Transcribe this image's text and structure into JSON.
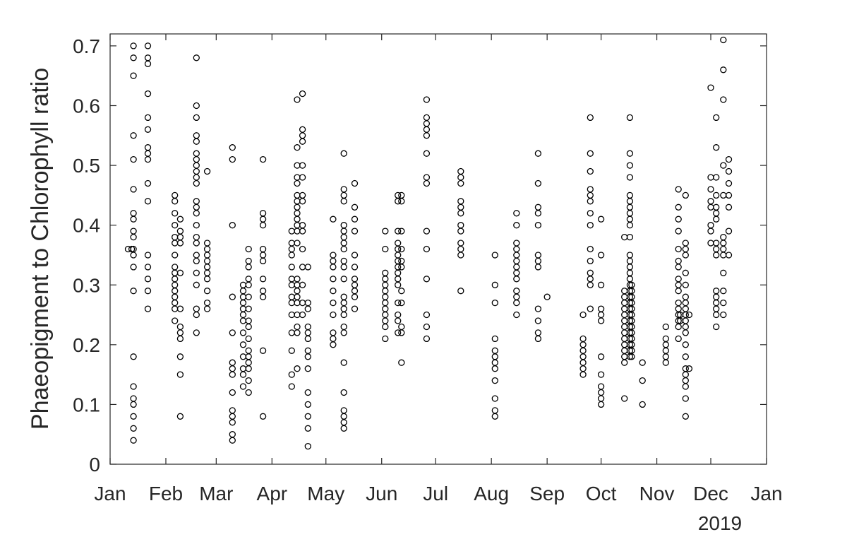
{
  "chart_data": {
    "type": "scatter",
    "title": "",
    "xlabel": "",
    "ylabel": "Phaeopigment to Chlorophyll ratio",
    "year_label": "2019",
    "x_ticks": [
      "Jan",
      "Feb",
      "Mar",
      "Apr",
      "May",
      "Jun",
      "Jul",
      "Aug",
      "Sep",
      "Oct",
      "Nov",
      "Dec",
      "Jan"
    ],
    "y_ticks": [
      "0",
      "0.1",
      "0.2",
      "0.3",
      "0.4",
      "0.5",
      "0.6",
      "0.7"
    ],
    "xlim": [
      "2019-01-01",
      "2020-01-01"
    ],
    "ylim": [
      0,
      0.72
    ],
    "grid": false,
    "marker": "circle-open",
    "colors": {
      "marker": "#000000",
      "axis": "#262626"
    },
    "points": [
      {
        "date": "2019-01-11",
        "values": [
          0.36
        ]
      },
      {
        "date": "2019-01-13",
        "values": [
          0.36
        ]
      },
      {
        "date": "2019-01-14",
        "values": [
          0.7,
          0.68,
          0.65,
          0.55,
          0.51,
          0.46,
          0.42,
          0.41,
          0.39,
          0.38,
          0.36,
          0.35,
          0.33,
          0.29,
          0.18,
          0.13,
          0.11,
          0.1,
          0.08,
          0.06,
          0.04
        ]
      },
      {
        "date": "2019-01-22",
        "values": [
          0.7,
          0.68,
          0.67,
          0.62,
          0.58,
          0.56,
          0.53,
          0.52,
          0.51,
          0.47,
          0.44,
          0.35,
          0.33,
          0.31,
          0.29,
          0.26
        ]
      },
      {
        "date": "2019-02-06",
        "values": [
          0.45,
          0.44,
          0.42,
          0.4,
          0.38,
          0.37,
          0.35,
          0.33,
          0.32,
          0.31,
          0.3,
          0.29,
          0.28,
          0.27,
          0.26,
          0.24
        ]
      },
      {
        "date": "2019-02-09",
        "values": [
          0.41,
          0.39,
          0.38,
          0.37,
          0.32,
          0.26,
          0.23,
          0.22,
          0.21,
          0.18,
          0.15,
          0.08
        ]
      },
      {
        "date": "2019-02-18",
        "values": [
          0.68,
          0.6,
          0.58,
          0.55,
          0.54,
          0.52,
          0.51,
          0.5,
          0.49,
          0.48,
          0.47,
          0.44,
          0.43,
          0.42,
          0.4,
          0.38,
          0.37,
          0.35,
          0.34,
          0.32,
          0.3,
          0.26,
          0.25,
          0.22
        ]
      },
      {
        "date": "2019-02-24",
        "values": [
          0.49,
          0.37,
          0.36,
          0.35,
          0.34,
          0.33,
          0.32,
          0.31,
          0.29,
          0.27,
          0.26
        ]
      },
      {
        "date": "2019-03-10",
        "values": [
          0.53,
          0.51,
          0.4,
          0.28,
          0.22,
          0.17,
          0.16,
          0.15,
          0.12,
          0.09,
          0.08,
          0.07,
          0.05,
          0.04
        ]
      },
      {
        "date": "2019-03-16",
        "values": [
          0.3,
          0.29,
          0.28,
          0.27,
          0.26,
          0.25,
          0.24,
          0.22,
          0.2,
          0.18,
          0.16,
          0.15,
          0.13
        ]
      },
      {
        "date": "2019-03-19",
        "values": [
          0.36,
          0.34,
          0.33,
          0.31,
          0.3,
          0.28,
          0.26,
          0.24,
          0.23,
          0.21,
          0.19,
          0.18,
          0.17,
          0.16,
          0.14,
          0.12
        ]
      },
      {
        "date": "2019-03-27",
        "values": [
          0.51,
          0.42,
          0.41,
          0.4,
          0.36,
          0.35,
          0.34,
          0.31,
          0.29,
          0.28,
          0.19,
          0.08
        ]
      },
      {
        "date": "2019-04-12",
        "values": [
          0.39,
          0.37,
          0.36,
          0.35,
          0.33,
          0.31,
          0.3,
          0.28,
          0.27,
          0.25,
          0.22,
          0.19,
          0.15,
          0.13
        ]
      },
      {
        "date": "2019-04-15",
        "values": [
          0.61,
          0.53,
          0.5,
          0.48,
          0.47,
          0.45,
          0.44,
          0.43,
          0.42,
          0.41,
          0.4,
          0.39,
          0.37,
          0.31,
          0.3,
          0.29,
          0.28,
          0.27,
          0.25,
          0.23,
          0.22,
          0.16
        ]
      },
      {
        "date": "2019-04-18",
        "values": [
          0.62,
          0.56,
          0.55,
          0.54,
          0.5,
          0.48,
          0.45,
          0.44,
          0.4,
          0.39,
          0.36,
          0.33,
          0.3,
          0.27,
          0.25
        ]
      },
      {
        "date": "2019-04-21",
        "values": [
          0.33,
          0.27,
          0.26,
          0.23,
          0.22,
          0.21,
          0.19,
          0.18,
          0.16,
          0.12,
          0.1,
          0.08,
          0.06,
          0.03
        ]
      },
      {
        "date": "2019-05-05",
        "values": [
          0.41,
          0.35,
          0.34,
          0.33,
          0.31,
          0.29,
          0.27,
          0.25,
          0.22,
          0.21,
          0.2
        ]
      },
      {
        "date": "2019-05-11",
        "values": [
          0.52,
          0.46,
          0.45,
          0.44,
          0.4,
          0.39,
          0.38,
          0.37,
          0.36,
          0.34,
          0.33,
          0.31,
          0.28,
          0.27,
          0.26,
          0.25,
          0.23,
          0.22,
          0.17,
          0.12,
          0.09,
          0.08,
          0.07,
          0.06
        ]
      },
      {
        "date": "2019-05-17",
        "values": [
          0.47,
          0.43,
          0.41,
          0.39,
          0.35,
          0.33,
          0.31,
          0.3,
          0.29,
          0.28,
          0.26
        ]
      },
      {
        "date": "2019-06-03",
        "values": [
          0.39,
          0.36,
          0.32,
          0.31,
          0.3,
          0.29,
          0.28,
          0.27,
          0.26,
          0.25,
          0.24,
          0.23,
          0.21
        ]
      },
      {
        "date": "2019-06-10",
        "values": [
          0.45,
          0.44,
          0.39,
          0.37,
          0.36,
          0.35,
          0.34,
          0.33,
          0.32,
          0.31,
          0.3,
          0.27,
          0.25,
          0.24,
          0.22
        ]
      },
      {
        "date": "2019-06-12",
        "values": [
          0.45,
          0.44,
          0.39,
          0.36,
          0.34,
          0.33,
          0.29,
          0.27,
          0.23,
          0.22,
          0.17
        ]
      },
      {
        "date": "2019-06-26",
        "values": [
          0.61,
          0.58,
          0.57,
          0.56,
          0.55,
          0.52,
          0.48,
          0.47,
          0.39,
          0.36,
          0.31,
          0.25,
          0.23,
          0.21
        ]
      },
      {
        "date": "2019-07-15",
        "values": [
          0.49,
          0.48,
          0.47,
          0.44,
          0.43,
          0.42,
          0.4,
          0.39,
          0.37,
          0.36,
          0.35,
          0.29
        ]
      },
      {
        "date": "2019-08-03",
        "values": [
          0.35,
          0.3,
          0.27,
          0.21,
          0.19,
          0.18,
          0.17,
          0.16,
          0.14,
          0.11,
          0.09,
          0.08
        ]
      },
      {
        "date": "2019-08-15",
        "values": [
          0.42,
          0.4,
          0.37,
          0.36,
          0.35,
          0.34,
          0.33,
          0.32,
          0.31,
          0.29,
          0.28,
          0.27,
          0.25
        ]
      },
      {
        "date": "2019-08-27",
        "values": [
          0.52,
          0.47,
          0.43,
          0.42,
          0.4,
          0.35,
          0.34,
          0.33,
          0.26,
          0.24,
          0.22,
          0.21
        ]
      },
      {
        "date": "2019-09-01",
        "values": [
          0.28
        ]
      },
      {
        "date": "2019-09-21",
        "values": [
          0.25,
          0.21,
          0.2,
          0.19,
          0.18,
          0.17,
          0.16,
          0.15
        ]
      },
      {
        "date": "2019-09-25",
        "values": [
          0.58,
          0.52,
          0.49,
          0.46,
          0.45,
          0.44,
          0.42,
          0.4,
          0.36,
          0.34,
          0.32,
          0.31,
          0.3,
          0.26
        ]
      },
      {
        "date": "2019-10-01",
        "values": [
          0.41,
          0.35,
          0.3,
          0.26,
          0.25,
          0.24,
          0.18,
          0.15,
          0.13,
          0.12,
          0.11,
          0.1
        ]
      },
      {
        "date": "2019-10-14",
        "values": [
          0.38,
          0.29,
          0.28,
          0.27,
          0.26,
          0.25,
          0.24,
          0.23,
          0.22,
          0.21,
          0.2,
          0.19,
          0.18,
          0.17,
          0.11
        ]
      },
      {
        "date": "2019-10-17",
        "values": [
          0.58,
          0.52,
          0.5,
          0.48,
          0.45,
          0.44,
          0.43,
          0.42,
          0.41,
          0.4,
          0.38,
          0.35,
          0.34,
          0.33,
          0.32,
          0.31,
          0.3,
          0.29,
          0.28,
          0.27,
          0.26,
          0.25,
          0.24,
          0.23,
          0.22,
          0.21,
          0.2,
          0.19,
          0.18
        ]
      },
      {
        "date": "2019-10-18",
        "values": [
          0.3,
          0.29,
          0.28,
          0.27,
          0.26,
          0.25,
          0.24,
          0.23,
          0.22,
          0.21,
          0.2,
          0.19,
          0.18
        ]
      },
      {
        "date": "2019-10-24",
        "values": [
          0.17,
          0.14,
          0.1
        ]
      },
      {
        "date": "2019-11-06",
        "values": [
          0.23,
          0.21,
          0.2,
          0.19,
          0.18,
          0.17
        ]
      },
      {
        "date": "2019-11-13",
        "values": [
          0.46,
          0.43,
          0.41,
          0.39,
          0.36,
          0.34,
          0.33,
          0.31,
          0.3,
          0.29,
          0.27,
          0.26,
          0.25,
          0.24,
          0.23,
          0.21
        ]
      },
      {
        "date": "2019-11-14",
        "values": [
          0.25,
          0.24
        ]
      },
      {
        "date": "2019-11-17",
        "values": [
          0.45,
          0.37,
          0.36,
          0.35,
          0.32,
          0.3,
          0.28,
          0.27,
          0.26,
          0.25,
          0.24,
          0.23,
          0.22,
          0.2,
          0.18,
          0.16,
          0.15,
          0.14,
          0.13,
          0.11,
          0.08
        ]
      },
      {
        "date": "2019-11-19",
        "values": [
          0.25,
          0.16
        ]
      },
      {
        "date": "2019-12-01",
        "values": [
          0.63,
          0.48,
          0.46,
          0.44,
          0.43,
          0.4,
          0.39,
          0.37
        ]
      },
      {
        "date": "2019-12-04",
        "values": [
          0.58,
          0.53,
          0.48,
          0.45,
          0.43,
          0.42,
          0.41,
          0.37,
          0.36,
          0.35,
          0.29,
          0.28,
          0.27,
          0.26,
          0.25,
          0.23
        ]
      },
      {
        "date": "2019-12-08",
        "values": [
          0.71,
          0.66,
          0.61,
          0.5,
          0.45,
          0.38,
          0.37,
          0.36,
          0.35,
          0.32,
          0.29,
          0.27,
          0.25
        ]
      },
      {
        "date": "2019-12-11",
        "values": [
          0.51,
          0.49,
          0.47,
          0.45,
          0.43,
          0.39,
          0.35
        ]
      }
    ]
  }
}
